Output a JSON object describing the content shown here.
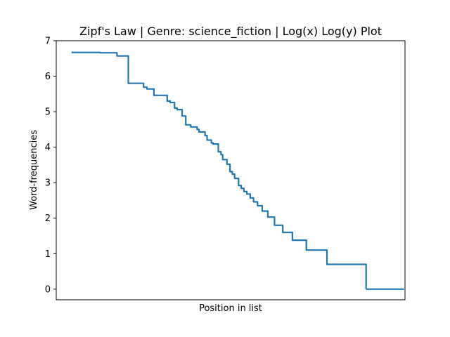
{
  "chart_data": {
    "type": "line",
    "title": "Zipf's Law | Genre: science_fiction | Log(x) Log(y) Plot",
    "xlabel": "Position in list",
    "ylabel": "Word-frequencies",
    "ylim": [
      -0.3,
      7.0
    ],
    "xlim": [
      -0.1,
      10.4
    ],
    "yticks": [
      0,
      1,
      2,
      3,
      4,
      5,
      6,
      7
    ],
    "xticks_shown": false,
    "grid": false,
    "series": [
      {
        "color": "#1f77b4",
        "x": [
          0.36,
          1.22,
          1.73,
          2.07,
          2.53,
          2.63,
          2.84,
          3.14,
          3.24,
          3.33,
          3.46,
          3.54,
          3.69,
          3.8,
          3.95,
          4.14,
          4.2,
          4.38,
          4.44,
          4.57,
          4.62,
          4.78,
          4.86,
          4.91,
          5.04,
          5.13,
          5.2,
          5.27,
          5.39,
          5.47,
          5.55,
          5.64,
          5.74,
          5.84,
          5.96,
          6.1,
          6.27,
          6.47,
          6.72,
          7.01,
          7.43,
          8.05,
          9.23
        ],
        "values": [
          6.67,
          6.66,
          6.57,
          5.8,
          5.69,
          5.64,
          5.46,
          5.46,
          5.3,
          5.26,
          5.1,
          5.06,
          4.88,
          4.63,
          4.57,
          4.5,
          4.43,
          4.33,
          4.2,
          4.12,
          4.09,
          3.87,
          3.79,
          3.65,
          3.52,
          3.31,
          3.24,
          3.12,
          2.92,
          2.84,
          2.75,
          2.68,
          2.57,
          2.46,
          2.35,
          2.2,
          2.03,
          1.8,
          1.6,
          1.38,
          1.1,
          0.7,
          0.0
        ]
      },
      {
        "color": "#1f77b4",
        "x": [
          9.23,
          10.37
        ],
        "values": [
          0.0,
          0.0
        ]
      }
    ]
  }
}
